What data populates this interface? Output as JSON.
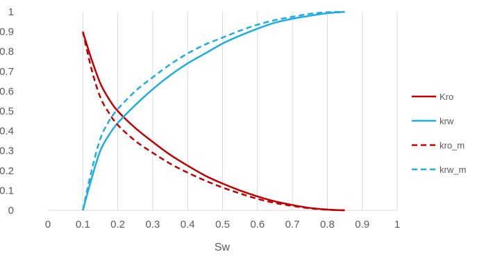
{
  "chart_data": {
    "type": "line",
    "title": "",
    "xlabel": "Sw",
    "ylabel": "",
    "xlim": [
      0,
      1
    ],
    "ylim": [
      0,
      1
    ],
    "x_ticks": [
      "0",
      "0.1",
      "0.2",
      "0.3",
      "0.4",
      "0.5",
      "0.6",
      "0.7",
      "0.8",
      "0.9",
      "1"
    ],
    "y_ticks": [
      "0",
      "0.1",
      "0.2",
      "0.3",
      "0.4",
      "0.5",
      "0.6",
      "0.7",
      "0.8",
      "0.9",
      "1"
    ],
    "grid": "vertical",
    "legend_position": "right",
    "series": [
      {
        "name": "Kro",
        "color": "#C00000",
        "dash": "solid",
        "x": [
          0.1,
          0.125,
          0.15,
          0.175,
          0.2,
          0.25,
          0.3,
          0.35,
          0.4,
          0.45,
          0.5,
          0.55,
          0.6,
          0.65,
          0.7,
          0.75,
          0.8,
          0.85
        ],
        "y": [
          0.9,
          0.76,
          0.64,
          0.56,
          0.5,
          0.415,
          0.345,
          0.28,
          0.225,
          0.175,
          0.135,
          0.1,
          0.07,
          0.045,
          0.027,
          0.012,
          0.004,
          0.0
        ]
      },
      {
        "name": "krw",
        "color": "#1CADE4",
        "dash": "solid",
        "x": [
          0.1,
          0.125,
          0.15,
          0.175,
          0.2,
          0.25,
          0.3,
          0.35,
          0.4,
          0.45,
          0.5,
          0.55,
          0.6,
          0.65,
          0.7,
          0.75,
          0.8,
          0.85
        ],
        "y": [
          0.0,
          0.16,
          0.3,
          0.38,
          0.44,
          0.53,
          0.61,
          0.68,
          0.74,
          0.79,
          0.84,
          0.88,
          0.915,
          0.945,
          0.965,
          0.98,
          0.993,
          1.0
        ]
      },
      {
        "name": "kro_m",
        "color": "#C00000",
        "dash": "dashed",
        "x": [
          0.1,
          0.125,
          0.15,
          0.175,
          0.2,
          0.25,
          0.3,
          0.35,
          0.4,
          0.45,
          0.5,
          0.55,
          0.6,
          0.65,
          0.7,
          0.75,
          0.8,
          0.85
        ],
        "y": [
          0.9,
          0.71,
          0.57,
          0.49,
          0.43,
          0.35,
          0.29,
          0.235,
          0.19,
          0.15,
          0.115,
          0.085,
          0.058,
          0.037,
          0.022,
          0.01,
          0.003,
          0.0
        ]
      },
      {
        "name": "krw_m",
        "color": "#1CADE4",
        "dash": "dashed",
        "x": [
          0.1,
          0.125,
          0.15,
          0.175,
          0.2,
          0.25,
          0.3,
          0.35,
          0.4,
          0.45,
          0.5,
          0.55,
          0.6,
          0.65,
          0.7,
          0.75,
          0.8,
          0.85
        ],
        "y": [
          0.0,
          0.2,
          0.36,
          0.45,
          0.51,
          0.6,
          0.67,
          0.735,
          0.79,
          0.835,
          0.87,
          0.905,
          0.935,
          0.958,
          0.975,
          0.99,
          0.998,
          1.0
        ]
      }
    ]
  }
}
